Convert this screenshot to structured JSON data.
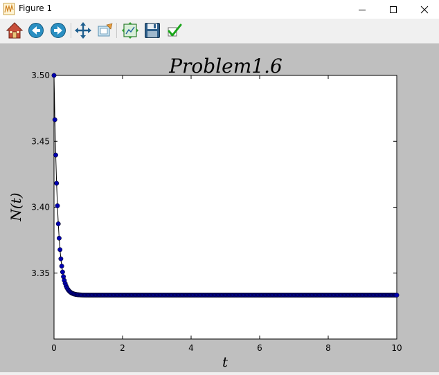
{
  "window": {
    "title": "Figure 1",
    "minimize_icon": "minimize-icon",
    "maximize_icon": "maximize-icon",
    "close_icon": "close-icon"
  },
  "toolbar": {
    "buttons": [
      {
        "name": "home",
        "icon": "home-icon"
      },
      {
        "name": "back",
        "icon": "back-arrow-icon"
      },
      {
        "name": "forward",
        "icon": "forward-arrow-icon"
      },
      {
        "name": "pan",
        "icon": "pan-arrows-icon"
      },
      {
        "name": "zoom",
        "icon": "zoom-rect-icon"
      },
      {
        "name": "subplots",
        "icon": "subplots-config-icon"
      },
      {
        "name": "save",
        "icon": "floppy-save-icon"
      },
      {
        "name": "edit-axis",
        "icon": "checkmark-edit-icon"
      }
    ]
  },
  "colors": {
    "figure_bg": "#bfbfbf",
    "axes_bg": "#ffffff",
    "marker": "#0000b0",
    "line": "#000000"
  },
  "chart_data": {
    "type": "scatter",
    "title": "Problem1.6",
    "xlabel": "t",
    "ylabel": "N(t)",
    "xlim": [
      0,
      10
    ],
    "ylim": [
      3.3,
      3.5
    ],
    "xticks": [
      "0",
      "2",
      "4",
      "6",
      "8",
      "10"
    ],
    "yticks": [
      "3.35",
      "3.40",
      "3.45",
      "3.50"
    ],
    "grid": false,
    "legend": "none",
    "series": [
      {
        "marker": "circle",
        "model": "exponential-decay",
        "y_start": 3.5,
        "y_end": 3.3333,
        "decay_rate": 9.0,
        "t_step": 0.025,
        "t_start": 0,
        "t_end": 10
      }
    ]
  }
}
